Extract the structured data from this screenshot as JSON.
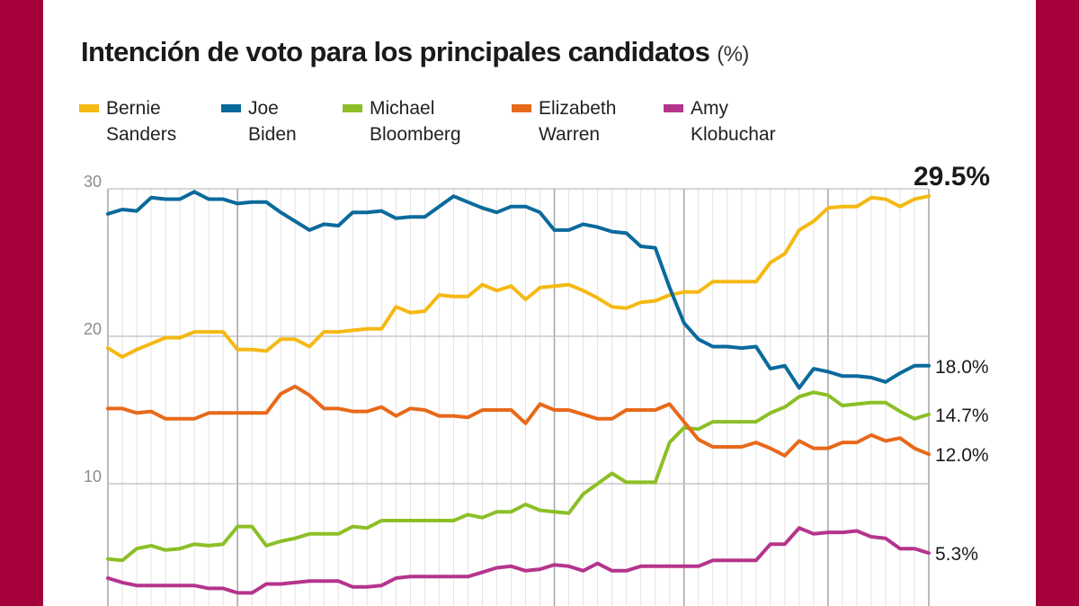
{
  "title": "Intención de voto para los principales candidatos",
  "title_unit": "(%)",
  "legend": [
    {
      "line1": "Bernie",
      "line2": "Sanders",
      "color": "#f5b914"
    },
    {
      "line1": "Joe",
      "line2": "Biden",
      "color": "#0a6a9c"
    },
    {
      "line1": "Michael",
      "line2": "Bloomberg",
      "color": "#8cbf26"
    },
    {
      "line1": "Elizabeth",
      "line2": "Warren",
      "color": "#e8691a"
    },
    {
      "line1": "Amy",
      "line2": "Klobuchar",
      "color": "#b5348c"
    }
  ],
  "chart_data": {
    "type": "line",
    "title": "Intención de voto para los principales candidatos (%)",
    "ylim": [
      0,
      30
    ],
    "yticks": [
      "10",
      "20",
      "30"
    ],
    "ytick_values": [
      10,
      20,
      30
    ],
    "grid": true,
    "legend_position": "top",
    "series": [
      {
        "name": "Bernie Sanders",
        "color": "#f5b914",
        "end_label": "29.5%",
        "values": [
          19.2,
          18.6,
          19.1,
          19.5,
          19.9,
          19.9,
          20.3,
          20.3,
          20.3,
          19.1,
          19.1,
          19.0,
          19.8,
          19.8,
          19.3,
          20.3,
          20.3,
          20.4,
          20.5,
          20.5,
          22.0,
          21.6,
          21.7,
          22.8,
          22.7,
          22.7,
          23.5,
          23.1,
          23.4,
          22.5,
          23.3,
          23.4,
          23.5,
          23.1,
          22.6,
          22.0,
          21.9,
          22.3,
          22.4,
          22.8,
          23.0,
          23.0,
          23.7,
          23.7,
          23.7,
          23.7,
          25.0,
          25.6,
          27.2,
          27.8,
          28.7,
          28.8,
          28.8,
          29.4,
          29.3,
          28.8,
          29.3,
          29.5
        ]
      },
      {
        "name": "Joe Biden",
        "color": "#0a6a9c",
        "end_label": "18.0%",
        "values": [
          28.3,
          28.6,
          28.5,
          29.4,
          29.3,
          29.3,
          29.8,
          29.3,
          29.3,
          29.0,
          29.1,
          29.1,
          28.4,
          27.8,
          27.2,
          27.6,
          27.5,
          28.4,
          28.4,
          28.5,
          28.0,
          28.1,
          28.1,
          28.8,
          29.5,
          29.1,
          28.7,
          28.4,
          28.8,
          28.8,
          28.4,
          27.2,
          27.2,
          27.6,
          27.4,
          27.1,
          27.0,
          26.1,
          26.0,
          23.3,
          20.9,
          19.8,
          19.3,
          19.3,
          19.2,
          19.3,
          17.8,
          18.0,
          16.5,
          17.8,
          17.6,
          17.3,
          17.3,
          17.2,
          16.9,
          17.5,
          18.0,
          18.0
        ]
      },
      {
        "name": "Michael Bloomberg",
        "color": "#8cbf26",
        "end_label": "14.7%",
        "values": [
          4.9,
          4.8,
          5.6,
          5.8,
          5.5,
          5.6,
          5.9,
          5.8,
          5.9,
          7.1,
          7.1,
          5.8,
          6.1,
          6.3,
          6.6,
          6.6,
          6.6,
          7.1,
          7.0,
          7.5,
          7.5,
          7.5,
          7.5,
          7.5,
          7.5,
          7.9,
          7.7,
          8.1,
          8.1,
          8.6,
          8.2,
          8.1,
          8.0,
          9.3,
          10.0,
          10.7,
          10.1,
          10.1,
          10.1,
          12.8,
          13.8,
          13.7,
          14.2,
          14.2,
          14.2,
          14.2,
          14.8,
          15.2,
          15.9,
          16.2,
          16.0,
          15.3,
          15.4,
          15.5,
          15.5,
          14.9,
          14.4,
          14.7
        ]
      },
      {
        "name": "Elizabeth Warren",
        "color": "#e8691a",
        "end_label": "12.0%",
        "values": [
          15.1,
          15.1,
          14.8,
          14.9,
          14.4,
          14.4,
          14.4,
          14.8,
          14.8,
          14.8,
          14.8,
          14.8,
          16.1,
          16.6,
          16.0,
          15.1,
          15.1,
          14.9,
          14.9,
          15.2,
          14.6,
          15.1,
          15.0,
          14.6,
          14.6,
          14.5,
          15.0,
          15.0,
          15.0,
          14.1,
          15.4,
          15.0,
          15.0,
          14.7,
          14.4,
          14.4,
          15.0,
          15.0,
          15.0,
          15.4,
          14.2,
          13.0,
          12.5,
          12.5,
          12.5,
          12.8,
          12.4,
          11.9,
          12.9,
          12.4,
          12.4,
          12.8,
          12.8,
          13.3,
          12.9,
          13.1,
          12.4,
          12.0
        ]
      },
      {
        "name": "Amy Klobuchar",
        "color": "#b5348c",
        "end_label": "5.3%",
        "values": [
          3.6,
          3.3,
          3.1,
          3.1,
          3.1,
          3.1,
          3.1,
          2.9,
          2.9,
          2.6,
          2.6,
          3.2,
          3.2,
          3.3,
          3.4,
          3.4,
          3.4,
          3.0,
          3.0,
          3.1,
          3.6,
          3.7,
          3.7,
          3.7,
          3.7,
          3.7,
          4.0,
          4.3,
          4.4,
          4.1,
          4.2,
          4.5,
          4.4,
          4.1,
          4.6,
          4.1,
          4.1,
          4.4,
          4.4,
          4.4,
          4.4,
          4.4,
          4.8,
          4.8,
          4.8,
          4.8,
          5.9,
          5.9,
          7.0,
          6.6,
          6.7,
          6.7,
          6.8,
          6.4,
          6.3,
          5.6,
          5.6,
          5.3
        ]
      }
    ]
  }
}
